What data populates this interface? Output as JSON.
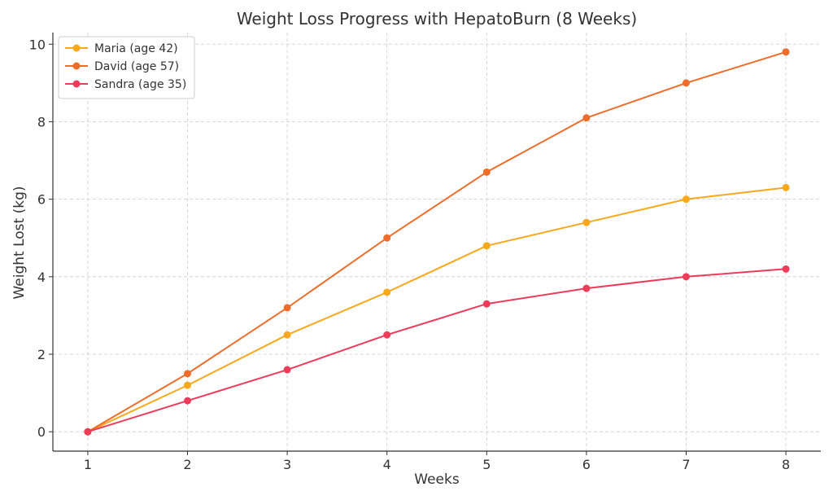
{
  "chart_data": {
    "type": "line",
    "title": "Weight Loss Progress with HepatoBurn (8 Weeks)",
    "xlabel": "Weeks",
    "ylabel": "Weight Lost (kg)",
    "x": [
      1,
      2,
      3,
      4,
      5,
      6,
      7,
      8
    ],
    "xlim": [
      0.65,
      8.35
    ],
    "ylim": [
      -0.5,
      10.3
    ],
    "yticks": [
      0,
      2,
      4,
      6,
      8,
      10
    ],
    "grid": true,
    "legend_position": "top-left",
    "series": [
      {
        "name": "Maria (age 42)",
        "color": "#f9a81b",
        "values": [
          0,
          1.2,
          2.5,
          3.6,
          4.8,
          5.4,
          6.0,
          6.3
        ]
      },
      {
        "name": "David (age 57)",
        "color": "#ee6d2a",
        "values": [
          0,
          1.5,
          3.2,
          5.0,
          6.7,
          8.1,
          9.0,
          9.8
        ]
      },
      {
        "name": "Sandra (age 35)",
        "color": "#ec3c5a",
        "values": [
          0,
          0.8,
          1.6,
          2.5,
          3.3,
          3.7,
          4.0,
          4.2
        ]
      }
    ]
  }
}
